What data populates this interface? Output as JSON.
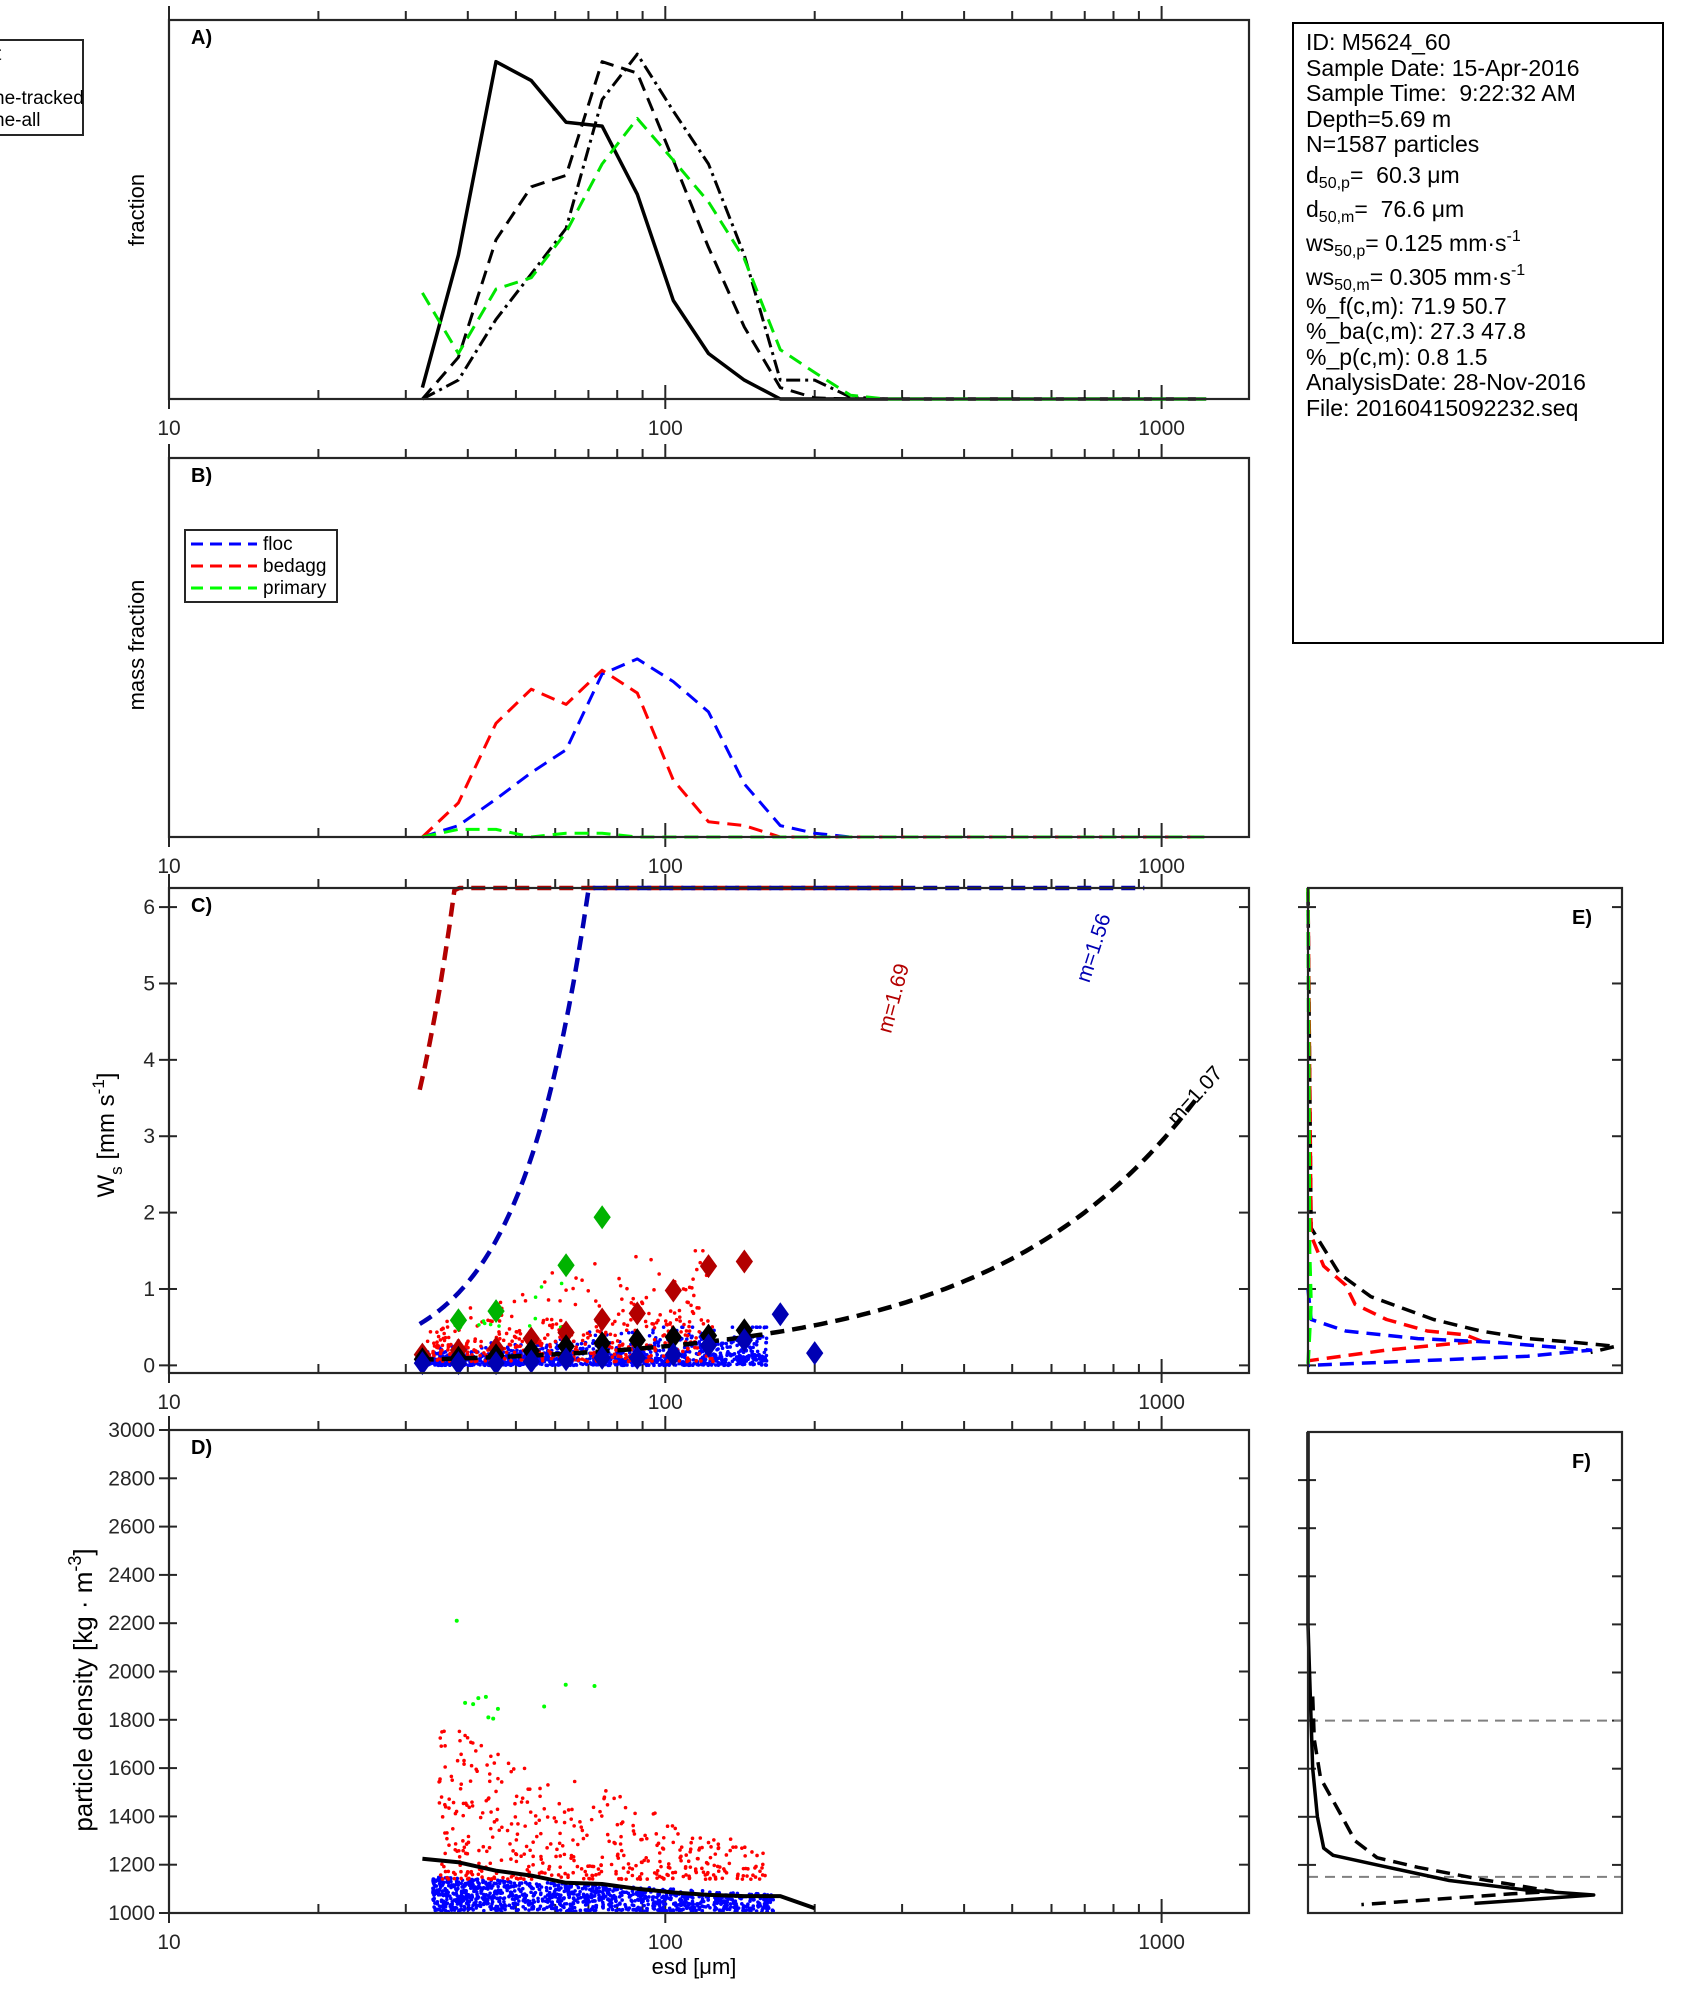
{
  "chart_data": [
    {
      "id": "A",
      "type": "line",
      "panel_label": "A)",
      "xlabel": "",
      "ylabel": "fraction",
      "xscale": "log",
      "xlim": [
        10,
        1500
      ],
      "ylim": [
        0,
        1
      ],
      "xticks": [
        10,
        100,
        1000
      ],
      "xtick_labels": [
        "10",
        "100",
        "1000"
      ],
      "yticks": [],
      "legend": {
        "placement": "outside-top-left",
        "entries": [
          "...",
          "ne-tracked",
          "ne-all"
        ],
        "partial_label": "t"
      },
      "x": [
        32.4,
        38.3,
        45.6,
        53.7,
        63.1,
        74.6,
        87.8,
        103.8,
        122.2,
        144.3,
        170.5,
        200.0,
        236.0,
        278.0,
        328.0,
        387.0,
        456.0,
        538.0,
        635.0,
        749.0,
        884.0,
        1043.0,
        1230.0
      ],
      "series": [
        {
          "name": "solid",
          "color": "#000000",
          "style": "solid",
          "values": [
            0.03,
            0.38,
            0.89,
            0.84,
            0.73,
            0.72,
            0.54,
            0.26,
            0.12,
            0.05,
            0.0,
            0.0,
            0.0,
            0.0,
            0.0,
            0.0,
            0.0,
            0.0,
            0.0,
            0.0,
            0.0,
            0.0,
            0.0
          ]
        },
        {
          "name": "dashed",
          "color": "#000000",
          "style": "dashed",
          "values": [
            0.0,
            0.11,
            0.42,
            0.56,
            0.59,
            0.89,
            0.86,
            0.63,
            0.4,
            0.19,
            0.03,
            0.003,
            0.0,
            0.0,
            0.0,
            0.0,
            0.0,
            0.0,
            0.0,
            0.0,
            0.0,
            0.0,
            0.0
          ]
        },
        {
          "name": "dash-dot",
          "color": "#000000",
          "style": "dashdot",
          "values": [
            0.0,
            0.05,
            0.21,
            0.33,
            0.45,
            0.79,
            0.91,
            0.76,
            0.62,
            0.38,
            0.05,
            0.05,
            0.005,
            0.0,
            0.0,
            0.0,
            0.0,
            0.0,
            0.0,
            0.0,
            0.0,
            0.0,
            0.0
          ]
        },
        {
          "name": "green",
          "color": "#00e600",
          "style": "dashed",
          "values": [
            0.28,
            0.12,
            0.29,
            0.32,
            0.44,
            0.62,
            0.74,
            0.63,
            0.52,
            0.37,
            0.13,
            0.07,
            0.01,
            0.0,
            0.0,
            0.0,
            0.0,
            0.0,
            0.0,
            0.0,
            0.0,
            0.0,
            0.0
          ]
        }
      ]
    },
    {
      "id": "B",
      "type": "line",
      "panel_label": "B)",
      "xlabel": "",
      "ylabel": "mass fraction",
      "xscale": "log",
      "xlim": [
        10,
        1500
      ],
      "ylim": [
        0,
        1
      ],
      "xticks": [
        10,
        100,
        1000
      ],
      "xtick_labels": [
        "10",
        "100",
        "1000"
      ],
      "yticks": [],
      "legend": {
        "placement": "top-left",
        "entries": [
          "floc",
          "bedagg",
          "primary"
        ]
      },
      "x": [
        32.4,
        38.3,
        45.6,
        53.7,
        63.1,
        74.6,
        87.8,
        103.8,
        122.2,
        144.3,
        170.5,
        200.0,
        236.0,
        278.0,
        328.0,
        387.0,
        456.0,
        538.0,
        635.0,
        749.0,
        884.0,
        1043.0,
        1230.0
      ],
      "series": [
        {
          "name": "floc",
          "color": "#0000ff",
          "style": "dashed",
          "values": [
            0.0,
            0.03,
            0.1,
            0.17,
            0.23,
            0.43,
            0.47,
            0.41,
            0.33,
            0.14,
            0.03,
            0.01,
            0.0,
            0.0,
            0.0,
            0.0,
            0.0,
            0.0,
            0.0,
            0.0,
            0.0,
            0.0,
            0.0
          ]
        },
        {
          "name": "bedagg",
          "color": "#ff0000",
          "style": "dashed",
          "values": [
            0.0,
            0.09,
            0.3,
            0.39,
            0.35,
            0.44,
            0.38,
            0.15,
            0.04,
            0.03,
            0.0,
            0.0,
            0.0,
            0.0,
            0.0,
            0.0,
            0.0,
            0.0,
            0.0,
            0.0,
            0.0,
            0.0,
            0.0
          ]
        },
        {
          "name": "primary",
          "color": "#00ff00",
          "style": "dashed",
          "values": [
            0.0,
            0.02,
            0.02,
            0.0,
            0.01,
            0.01,
            0.0,
            0.0,
            0.0,
            0.0,
            0.0,
            0.0,
            0.0,
            0.0,
            0.0,
            0.0,
            0.0,
            0.0,
            0.0,
            0.0,
            0.0,
            0.0,
            0.0
          ]
        }
      ]
    },
    {
      "id": "C",
      "type": "scatter",
      "panel_label": "C)",
      "xlabel": "",
      "ylabel": "W_s [mm s^-1]",
      "ylabel_main": "W",
      "ylabel_sub": "s",
      "ylabel_unit": " [mm s",
      "ylabel_sup": "-1",
      "ylabel_close": "]",
      "xscale": "log",
      "xlim": [
        10,
        1500
      ],
      "ylim": [
        -0.1,
        6.25
      ],
      "xticks": [
        10,
        100,
        1000
      ],
      "xtick_labels": [
        "10",
        "100",
        "1000"
      ],
      "yticks": [
        0,
        1,
        2,
        3,
        4,
        5,
        6
      ],
      "ytick_labels": [
        "0",
        "1",
        "2",
        "3",
        "4",
        "5",
        "6"
      ],
      "fits": [
        {
          "name": "bedagg fit",
          "label": "m=1.69",
          "color": "#b30000",
          "coef": 2.95e-05,
          "exponent": 1.69,
          "xmax": 310
        },
        {
          "name": "floc fit",
          "label": "m=1.56",
          "color": "#0000b3",
          "coef": 1.09e-05,
          "exponent": 1.56,
          "xmax": 930
        },
        {
          "name": "all fit",
          "label": "m=1.07",
          "color": "#000000",
          "coef": 0.00181,
          "exponent": 1.07,
          "xmax": 1200
        }
      ],
      "binned_means": [
        {
          "name": "primary",
          "color": "#00b300",
          "x": [
            38.3,
            45.6,
            63.1,
            74.6
          ],
          "y": [
            0.59,
            0.71,
            1.31,
            1.94
          ]
        },
        {
          "name": "bedagg",
          "color": "#b30000",
          "x": [
            32.4,
            38.3,
            45.6,
            53.7,
            63.1,
            74.6,
            87.8,
            103.8,
            122.2,
            144.3
          ],
          "y": [
            0.14,
            0.2,
            0.22,
            0.35,
            0.43,
            0.6,
            0.68,
            0.98,
            1.3,
            1.36
          ]
        },
        {
          "name": "all",
          "color": "#000000",
          "x": [
            32.4,
            38.3,
            45.6,
            53.7,
            63.1,
            74.6,
            87.8,
            103.8,
            122.2,
            144.3
          ],
          "y": [
            0.08,
            0.1,
            0.13,
            0.19,
            0.25,
            0.29,
            0.33,
            0.37,
            0.39,
            0.46
          ]
        },
        {
          "name": "floc",
          "color": "#0000b3",
          "x": [
            32.4,
            38.3,
            45.6,
            53.7,
            63.1,
            74.6,
            87.8,
            103.8,
            122.2,
            144.3,
            170.5,
            200.0
          ],
          "y": [
            0.03,
            0.03,
            0.03,
            0.05,
            0.08,
            0.1,
            0.1,
            0.14,
            0.26,
            0.33,
            0.67,
            0.16
          ]
        }
      ],
      "scatter_clouds": [
        {
          "name": "floc",
          "color": "#0000ff",
          "count": 1140,
          "x_range": [
            33,
            160
          ],
          "y_range": [
            0.0,
            0.5
          ],
          "seed": 11
        },
        {
          "name": "bedagg",
          "color": "#ff0000",
          "count": 433,
          "x_range": [
            33,
            125
          ],
          "y_range": [
            0.05,
            1.5
          ],
          "seed": 23
        },
        {
          "name": "primary",
          "color": "#00ff00",
          "count": 14,
          "x_range": [
            37,
            62
          ],
          "y_range": [
            0.5,
            1.4
          ],
          "seed": 37
        }
      ]
    },
    {
      "id": "D",
      "type": "scatter",
      "panel_label": "D)",
      "xlabel": "esd [μm]",
      "ylabel": "particle density [kg · m^-3]",
      "ylabel_main": "particle density [kg · m",
      "ylabel_sup": "-3",
      "ylabel_close": "]",
      "xscale": "log",
      "xlim": [
        10,
        1500
      ],
      "ylim": [
        1000,
        3000
      ],
      "xticks": [
        10,
        100,
        1000
      ],
      "xtick_labels": [
        "10",
        "100",
        "1000"
      ],
      "yticks": [
        1000,
        1200,
        1400,
        1600,
        1800,
        2000,
        2200,
        2400,
        2600,
        2800,
        3000
      ],
      "ytick_labels": [
        "1000",
        "1200",
        "1400",
        "1600",
        "1800",
        "2000",
        "2200",
        "2400",
        "2600",
        "2800",
        "3000"
      ],
      "mean_line": {
        "color": "#000000",
        "x": [
          32.4,
          38.3,
          45.6,
          53.7,
          63.1,
          74.6,
          87.8,
          103.8,
          122.2,
          144.3,
          170.5,
          200.0
        ],
        "y": [
          1225,
          1210,
          1175,
          1155,
          1125,
          1120,
          1100,
          1085,
          1075,
          1070,
          1070,
          1020
        ]
      },
      "scatter_clouds": [
        {
          "name": "floc",
          "color": "#0000ff",
          "count": 1140,
          "x_range": [
            34,
            165
          ],
          "y_range": [
            1005,
            1150
          ],
          "seed": 5
        },
        {
          "name": "bedagg",
          "color": "#ff0000",
          "count": 433,
          "x_range": [
            35,
            160
          ],
          "y_range": [
            1140,
            1790
          ],
          "seed": 19
        },
        {
          "name": "primary",
          "color": "#00ff00",
          "count": 11,
          "x": [
            38.0,
            39.5,
            41.0,
            42.0,
            43.5,
            44.0,
            45.0,
            46.0,
            57.0,
            63.0,
            72.0
          ],
          "y": [
            2210,
            1870,
            1865,
            1890,
            1895,
            1810,
            1805,
            1845,
            1855,
            1945,
            1940
          ]
        }
      ]
    },
    {
      "id": "E",
      "type": "line",
      "panel_label": "E)",
      "xlabel": "",
      "ylabel": "",
      "orientation": "horizontal-distribution",
      "ylim": [
        -0.1,
        6.25
      ],
      "xlim": [
        0,
        1
      ],
      "yticks": [
        0,
        1,
        2,
        3,
        4,
        5,
        6
      ],
      "series": [
        {
          "name": "all",
          "color": "#000000",
          "style": "dashed",
          "y": [
            6.2,
            1.8,
            1.2,
            0.9,
            0.6,
            0.45,
            0.35,
            0.3,
            0.25,
            0.17
          ],
          "x": [
            0.0,
            0.01,
            0.1,
            0.2,
            0.4,
            0.55,
            0.7,
            0.85,
            0.98,
            0.9
          ]
        },
        {
          "name": "bedagg",
          "color": "#ff0000",
          "style": "dashed",
          "y": [
            6.25,
            1.7,
            1.3,
            1.05,
            0.8,
            0.6,
            0.45,
            0.4,
            0.32,
            0.2,
            0.06
          ],
          "x": [
            0.0,
            0.01,
            0.05,
            0.12,
            0.15,
            0.25,
            0.38,
            0.5,
            0.55,
            0.25,
            0.0
          ]
        },
        {
          "name": "floc",
          "color": "#0000ff",
          "style": "dashed",
          "y": [
            1.0,
            0.6,
            0.45,
            0.35,
            0.3,
            0.25,
            0.2,
            0.12,
            0.05,
            0.0
          ],
          "x": [
            0.0,
            0.01,
            0.12,
            0.35,
            0.6,
            0.75,
            0.9,
            0.7,
            0.3,
            0.0
          ]
        },
        {
          "name": "primary",
          "color": "#00ff00",
          "style": "dashed",
          "y": [
            6.25,
            1.5,
            0.8,
            0.0
          ],
          "x": [
            0.0,
            0.005,
            0.01,
            0.0
          ]
        }
      ]
    },
    {
      "id": "F",
      "type": "line",
      "panel_label": "F)",
      "xlabel": "",
      "ylabel": "",
      "orientation": "horizontal-distribution",
      "ylim": [
        1000,
        3000
      ],
      "xlim": [
        0,
        1
      ],
      "yticks": [
        1200,
        1400,
        1600,
        1800,
        2000,
        2200,
        2400,
        2600,
        2800
      ],
      "reference_lines": [
        {
          "y": 1150,
          "color": "#808080",
          "style": "dashed"
        },
        {
          "y": 1800,
          "color": "#808080",
          "style": "dashed"
        }
      ],
      "series": [
        {
          "name": "solid",
          "color": "#000000",
          "style": "solid",
          "y": [
            3000,
            2200,
            1800,
            1600,
            1400,
            1270,
            1240,
            1200,
            1135,
            1095,
            1075,
            1040
          ],
          "x": [
            0.0,
            0.0,
            0.01,
            0.015,
            0.03,
            0.05,
            0.08,
            0.22,
            0.45,
            0.7,
            0.91,
            0.53
          ]
        },
        {
          "name": "dashed",
          "color": "#000000",
          "style": "dashed",
          "y": [
            1900,
            1720,
            1560,
            1420,
            1300,
            1230,
            1190,
            1140,
            1090,
            1080,
            1035
          ],
          "x": [
            0.015,
            0.02,
            0.04,
            0.1,
            0.15,
            0.22,
            0.35,
            0.55,
            0.78,
            0.65,
            0.17
          ]
        }
      ]
    }
  ],
  "info_box": {
    "id_line": "ID: M5624_60",
    "sample_date": "Sample Date: 15-Apr-2016",
    "sample_time": "Sample Time:  9:22:32 AM",
    "depth": "Depth=5.69 m",
    "n_particles": "N=1587 particles",
    "d50p": {
      "prefix": "d",
      "sub": "50,p",
      "value": "=  60.3 μm"
    },
    "d50m": {
      "prefix": "d",
      "sub": "50,m",
      "value": "=  76.6 μm"
    },
    "ws50p": {
      "prefix": "ws",
      "sub": "50,p",
      "value": "= 0.125 mm·s",
      "sup": "-1"
    },
    "ws50m": {
      "prefix": "ws",
      "sub": "50,m",
      "value": "= 0.305 mm·s",
      "sup": "-1"
    },
    "pct_f": "%_f(c,m): 71.9 50.7",
    "pct_ba": "%_ba(c,m): 27.3 47.8",
    "pct_p": "%_p(c,m): 0.8 1.5",
    "analysis_date": "AnalysisDate: 28-Nov-2016",
    "file": "File: 20160415092232.seq"
  }
}
